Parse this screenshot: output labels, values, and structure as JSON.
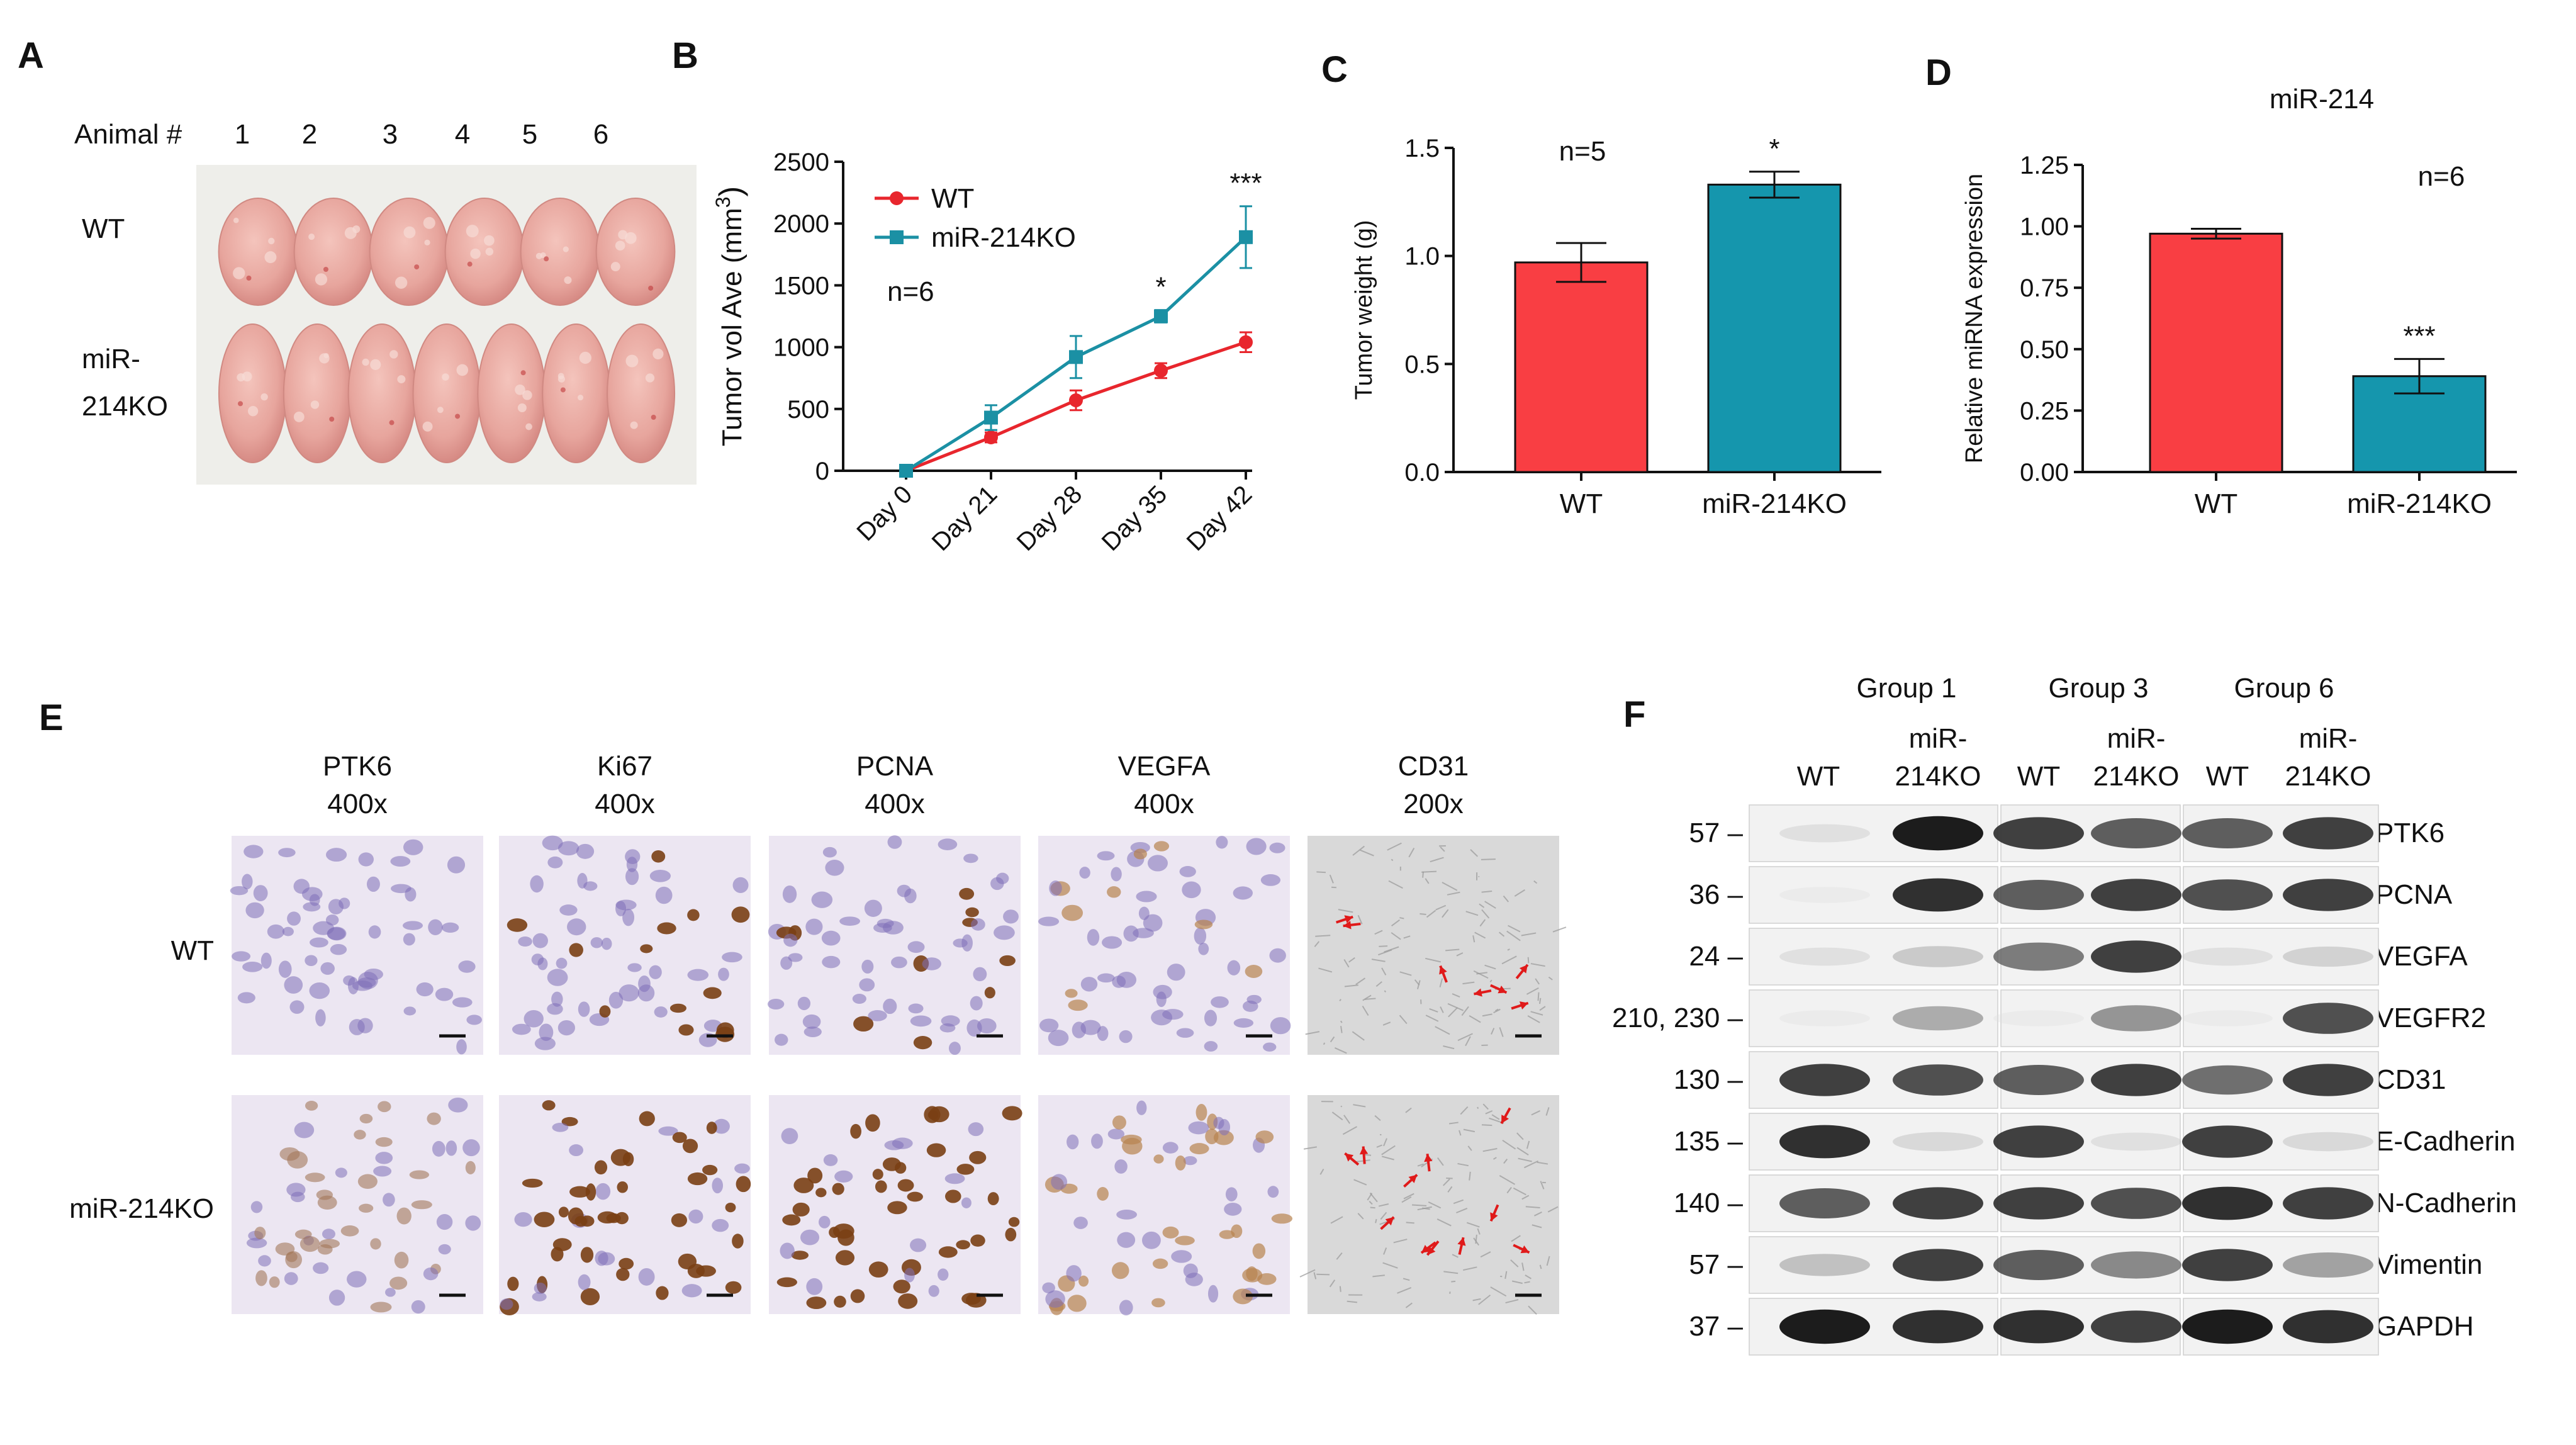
{
  "panels": {
    "A": {
      "label": "A",
      "animal_header": "Animal #",
      "animals": [
        "1",
        "2",
        "3",
        "4",
        "5",
        "6"
      ],
      "rows": [
        "WT",
        "miR-\n214KO"
      ],
      "row_line1": "WT",
      "row2_line1": "miR-",
      "row2_line2": "214KO",
      "colors": {
        "photo_bg": "#eeeeea",
        "tumor": "#e8a8a0",
        "tumor_dark": "#d88d86"
      }
    },
    "B": {
      "label": "B"
    },
    "C": {
      "label": "C"
    },
    "D": {
      "label": "D"
    },
    "E": {
      "label": "E",
      "columns": [
        {
          "marker": "PTK6",
          "mag": "400x",
          "style": "ihc_light"
        },
        {
          "marker": "Ki67",
          "mag": "400x",
          "style": "ihc_nuclear"
        },
        {
          "marker": "PCNA",
          "mag": "400x",
          "style": "ihc_nuclear"
        },
        {
          "marker": "VEGFA",
          "mag": "400x",
          "style": "ihc_cyto"
        },
        {
          "marker": "CD31",
          "mag": "200x",
          "style": "ihc_gray"
        }
      ],
      "rows": [
        "WT",
        "miR-214KO"
      ],
      "colors": {
        "hema": "#7f6fb8",
        "dab": "#7a3f14",
        "tissue_bg": "#ece6f2",
        "gray_bg": "#d9d9d9",
        "arrow": "#e01a1a"
      }
    },
    "F": {
      "label": "F",
      "groups": [
        {
          "name": "Group 1",
          "lanes": [
            "WT",
            "miR-\n214KO"
          ]
        },
        {
          "name": "Group 3",
          "lanes": [
            "WT",
            "miR-\n214KO"
          ]
        },
        {
          "name": "Group 6",
          "lanes": [
            "WT",
            "miR-\n214KO"
          ]
        }
      ],
      "lane_wt": "WT",
      "lane_ko_1": "miR-",
      "lane_ko_2": "214KO",
      "blots": [
        {
          "mw": "57 –",
          "protein": "PTK6",
          "intensity": [
            0.15,
            0.95,
            0.85,
            0.75,
            0.75,
            0.85
          ]
        },
        {
          "mw": "36 –",
          "protein": "PCNA",
          "intensity": [
            0.05,
            0.9,
            0.75,
            0.85,
            0.8,
            0.85
          ]
        },
        {
          "mw": "24 –",
          "protein": "VEGFA",
          "intensity": [
            0.15,
            0.3,
            0.65,
            0.85,
            0.15,
            0.25
          ]
        },
        {
          "mw": "210, 230 –",
          "protein": "VEGFR2",
          "intensity": [
            0.05,
            0.45,
            0.05,
            0.55,
            0.05,
            0.8
          ]
        },
        {
          "mw": "130 –",
          "protein": "CD31",
          "intensity": [
            0.85,
            0.8,
            0.75,
            0.85,
            0.7,
            0.85
          ]
        },
        {
          "mw": "135 –",
          "protein": "E-Cadherin",
          "intensity": [
            0.9,
            0.2,
            0.85,
            0.15,
            0.85,
            0.2
          ]
        },
        {
          "mw": "140 –",
          "protein": "N-Cadherin",
          "intensity": [
            0.75,
            0.85,
            0.85,
            0.8,
            0.9,
            0.85
          ]
        },
        {
          "mw": "57 –",
          "protein": "Vimentin",
          "intensity": [
            0.35,
            0.85,
            0.75,
            0.6,
            0.85,
            0.5
          ]
        },
        {
          "mw": "37 –",
          "protein": "GAPDH",
          "intensity": [
            0.95,
            0.9,
            0.9,
            0.85,
            0.95,
            0.9
          ]
        }
      ]
    }
  },
  "chart_data": [
    {
      "panel": "B",
      "type": "line",
      "categories": [
        "Day 0",
        "Day 21",
        "Day 28",
        "Day 35",
        "Day 42"
      ],
      "series": [
        {
          "name": "WT",
          "values": [
            0,
            270,
            570,
            810,
            1040
          ],
          "errors": [
            0,
            40,
            80,
            60,
            80
          ],
          "color": "#e8262d",
          "marker": "circle"
        },
        {
          "name": "miR-214KO",
          "values": [
            0,
            430,
            920,
            1250,
            1890
          ],
          "errors": [
            0,
            100,
            170,
            50,
            250
          ],
          "color": "#1b90a4",
          "marker": "square"
        }
      ],
      "ylabel": "Tumor vol Ave (mm",
      "ylabel_sup": "3",
      "ylabel_close": ")",
      "ylim": [
        0,
        2500
      ],
      "yticks": [
        0,
        500,
        1000,
        1500,
        2000,
        2500
      ],
      "annotations": [
        {
          "category": "Day 35",
          "text": "*"
        },
        {
          "category": "Day 42",
          "text": "***"
        }
      ],
      "note": "n=6",
      "legend_position": "top-left"
    },
    {
      "panel": "C",
      "type": "bar",
      "categories": [
        "WT",
        "miR-214KO"
      ],
      "values": [
        0.97,
        1.33
      ],
      "errors": [
        0.09,
        0.06
      ],
      "colors": [
        "#f93e43",
        "#1596ad"
      ],
      "ylabel": "Tumor weight (g)",
      "ylim": [
        0,
        1.5
      ],
      "yticks": [
        "0.0",
        "0.5",
        "1.0",
        "1.5"
      ],
      "annotations": [
        {
          "category": "miR-214KO",
          "text": "*"
        }
      ],
      "note": "n=5"
    },
    {
      "panel": "D",
      "type": "bar",
      "title": "miR-214",
      "categories": [
        "WT",
        "miR-214KO"
      ],
      "values": [
        0.97,
        0.39
      ],
      "errors": [
        0.02,
        0.07
      ],
      "colors": [
        "#f93e43",
        "#1596ad"
      ],
      "ylabel": "Relative miRNA expression",
      "ylim": [
        0,
        1.25
      ],
      "yticks": [
        "0.00",
        "0.25",
        "0.50",
        "0.75",
        "1.00",
        "1.25"
      ],
      "annotations": [
        {
          "category": "miR-214KO",
          "text": "***"
        }
      ],
      "note": "n=6"
    }
  ]
}
